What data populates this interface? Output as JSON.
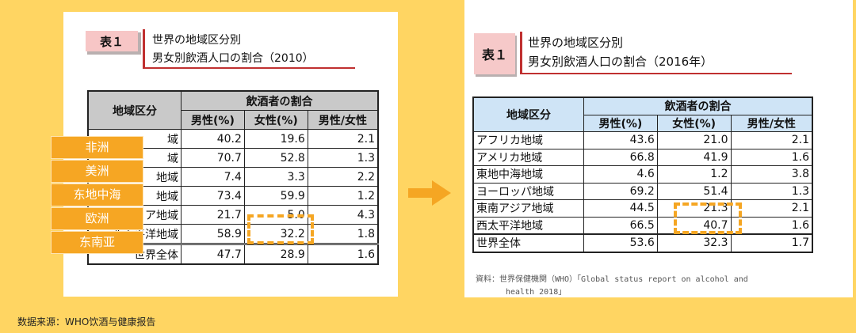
{
  "left": {
    "tag": "表１",
    "title_line1": "世界の地域区分別",
    "title_line2": "男女別飲酒人口の割合（2010）",
    "table": {
      "header_region": "地域区分",
      "header_group": "飲酒者の割合",
      "col_male": "男性(%)",
      "col_female": "女性(%)",
      "col_ratio": "男性/女性",
      "rows": [
        {
          "region": "域",
          "male": "40.2",
          "female": "19.6",
          "ratio": "2.1"
        },
        {
          "region": "域",
          "male": "70.7",
          "female": "52.8",
          "ratio": "1.3"
        },
        {
          "region": "地域",
          "male": "7.4",
          "female": "3.3",
          "ratio": "2.2"
        },
        {
          "region": "地域",
          "male": "73.4",
          "female": "59.9",
          "ratio": "1.2"
        },
        {
          "region": "ア地域",
          "male": "21.7",
          "female": "5.0",
          "ratio": "4.3"
        },
        {
          "region": "西太平洋地域",
          "male": "58.9",
          "female": "32.2",
          "ratio": "1.8"
        },
        {
          "region": "世界全体",
          "male": "47.7",
          "female": "28.9",
          "ratio": "1.6"
        }
      ]
    }
  },
  "overlay_labels": [
    "非洲",
    "美洲",
    "东地中海",
    "欧洲",
    "东南亚"
  ],
  "right": {
    "tag": "表１",
    "title_line1": "世界の地域区分別",
    "title_line2": "男女別飲酒人口の割合（2016年）",
    "table": {
      "header_region": "地域区分",
      "header_group": "飲酒者の割合",
      "col_male": "男性(%)",
      "col_female": "女性(%)",
      "col_ratio": "男性/女性",
      "rows": [
        {
          "region": "アフリカ地域",
          "male": "43.6",
          "female": "21.0",
          "ratio": "2.1"
        },
        {
          "region": "アメリカ地域",
          "male": "66.8",
          "female": "41.9",
          "ratio": "1.6"
        },
        {
          "region": "東地中海地域",
          "male": "4.6",
          "female": "1.2",
          "ratio": "3.8"
        },
        {
          "region": "ヨーロッパ地域",
          "male": "69.2",
          "female": "51.4",
          "ratio": "1.3"
        },
        {
          "region": "東南アジア地域",
          "male": "44.5",
          "female": "21.3",
          "ratio": "2.1"
        },
        {
          "region": "西太平洋地域",
          "male": "66.5",
          "female": "40.7",
          "ratio": "1.6"
        },
        {
          "region": "世界全体",
          "male": "53.6",
          "female": "32.3",
          "ratio": "1.7"
        }
      ]
    },
    "source_line1": "資料：世界保健機関（WHO）「Global status report on alcohol and",
    "source_line2": "health 2018」"
  },
  "source_label": "数据来源：WHO饮酒与健康报告",
  "colors": {
    "background": "#FFD562",
    "highlight": "#F5A623",
    "tag_pink": "#F7C6C6",
    "header_blue": "#CFE4F6",
    "header_gray": "#C9C9C9",
    "title_rule": "#C03030"
  }
}
